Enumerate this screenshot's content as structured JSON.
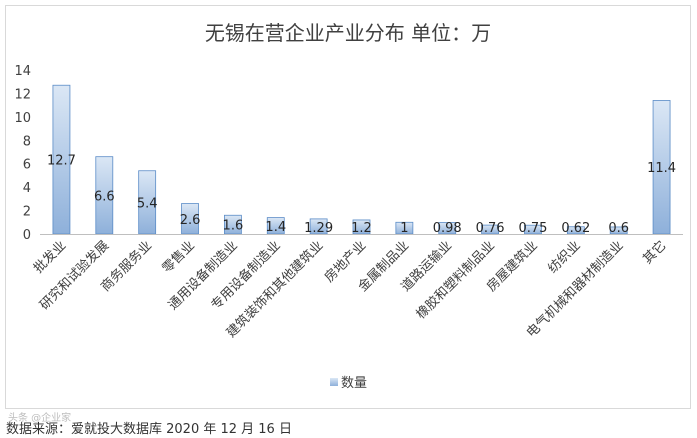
{
  "chart_data": {
    "type": "bar",
    "title": "无锡在营企业产业分布 单位：万",
    "categories": [
      "批发业",
      "研究和试验发展",
      "商务服务业",
      "零售业",
      "通用设备制造业",
      "专用设备制造业",
      "建筑装饰和其他建筑业",
      "房地产业",
      "金属制品业",
      "道路运输业",
      "橡胶和塑料制品业",
      "房屋建筑业",
      "纺织业",
      "电气机械和器材制造业",
      "其它"
    ],
    "series": [
      {
        "name": "数量",
        "values": [
          12.7,
          6.6,
          5.4,
          2.6,
          1.6,
          1.4,
          1.29,
          1.2,
          1,
          0.98,
          0.76,
          0.75,
          0.62,
          0.6,
          11.4
        ],
        "labels": [
          "12.7",
          "6.6",
          "5.4",
          "2.6",
          "1.6",
          "1.4",
          "1.29",
          "1.2",
          "1",
          "0.98",
          "0.76",
          "0.75",
          "0.62",
          "0.6",
          "11.4"
        ]
      }
    ],
    "y_ticks": [
      "0",
      "2",
      "4",
      "6",
      "8",
      "10",
      "12",
      "14"
    ],
    "ylim": [
      0,
      14
    ],
    "grid": false,
    "legend": "bottom-center",
    "colors": {
      "bar_top": "#dbe7f5",
      "bar_bottom": "#8eb0da",
      "bar_stroke": "#5b8cc7",
      "axis": "#bfbfbf"
    }
  },
  "source_note": "数据来源：爱就投大数据库 2020 年 12 月 16 日",
  "watermark": "头条 @企业家"
}
